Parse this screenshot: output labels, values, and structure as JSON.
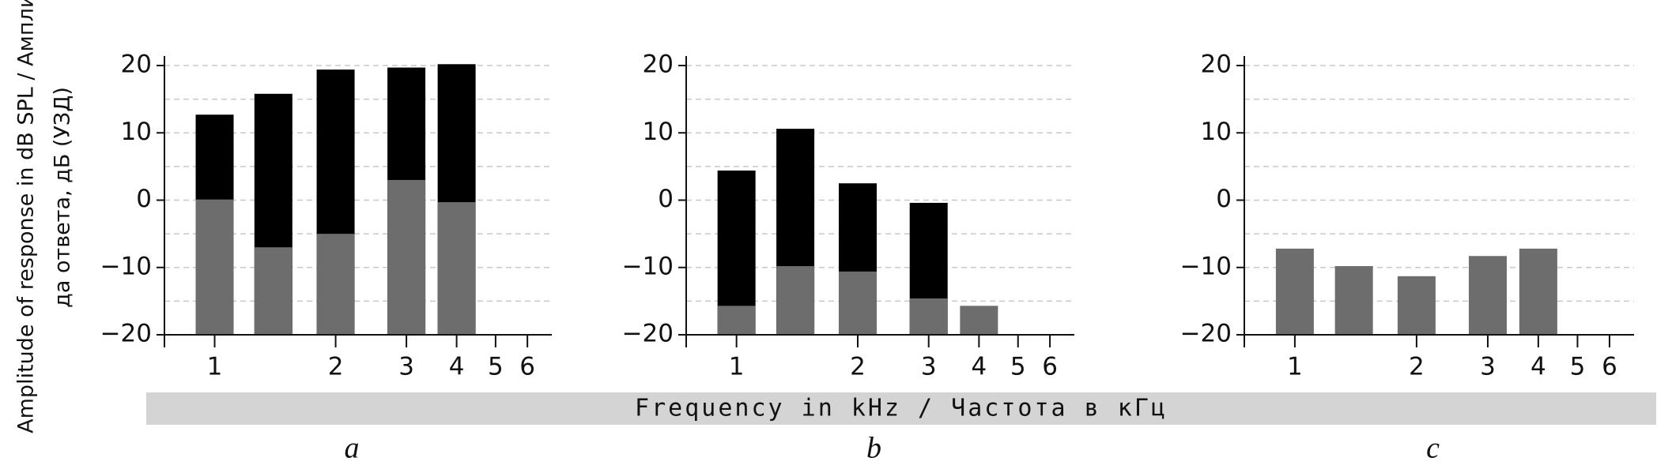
{
  "y_label": [
    "Amplitude of response in dB SPL / Амплиту-",
    "да ответа, дБ (УЗД)"
  ],
  "x_label": "Frequency in kHz / Частота в кГц",
  "chart_data": [
    {
      "type": "bar",
      "title": "a",
      "x_scale": "log",
      "grid": true,
      "x": [
        1,
        1.4,
        2,
        3,
        4
      ],
      "series": [
        {
          "color": "#000000",
          "values": [
            12.7,
            15.8,
            19.4,
            19.7,
            20.2
          ]
        },
        {
          "color": "#6d6d6d",
          "values": [
            0.1,
            -7,
            -5,
            3,
            -0.3
          ]
        }
      ],
      "xlim": [
        0.75,
        6.9
      ],
      "xticks": [
        1,
        2,
        3,
        4,
        5,
        6
      ],
      "ylim": [
        -20,
        20
      ],
      "yticks": [
        {
          "value": -20,
          "label": "−20"
        },
        {
          "value": -10,
          "label": "−10"
        },
        0,
        10,
        20
      ],
      "yminor": [
        -15,
        -5,
        5,
        15
      ]
    },
    {
      "type": "bar",
      "title": "b",
      "x_scale": "log",
      "grid": true,
      "x": [
        1,
        1.4,
        2,
        3,
        4
      ],
      "series": [
        {
          "color": "#000000",
          "values": [
            4.4,
            10.6,
            2.5,
            -0.4,
            null
          ]
        },
        {
          "color": "#6d6d6d",
          "values": [
            -15.7,
            -9.8,
            -10.6,
            -14.6,
            -15.7
          ]
        }
      ],
      "xlim": [
        0.75,
        6.9
      ],
      "xticks": [
        1,
        2,
        3,
        4,
        5,
        6
      ],
      "ylim": [
        -20,
        20
      ],
      "yticks": [
        {
          "value": -20,
          "label": "−20"
        },
        {
          "value": -10,
          "label": "−10"
        },
        0,
        10,
        20
      ],
      "yminor": [
        -15,
        -5,
        5,
        15
      ]
    },
    {
      "type": "bar",
      "title": "c",
      "x_scale": "log",
      "grid": true,
      "x": [
        1,
        1.4,
        2,
        3,
        4
      ],
      "series": [
        {
          "color": "#6d6d6d",
          "values": [
            -7.2,
            -9.8,
            -11.3,
            -8.3,
            -7.2
          ]
        }
      ],
      "xlim": [
        0.75,
        6.9
      ],
      "xticks": [
        1,
        2,
        3,
        4,
        5,
        6
      ],
      "ylim": [
        -20,
        20
      ],
      "yticks": [
        {
          "value": -20,
          "label": "−20"
        },
        {
          "value": -10,
          "label": "−10"
        },
        0,
        10,
        20
      ],
      "yminor": [
        -15,
        -5,
        5,
        15
      ]
    }
  ]
}
